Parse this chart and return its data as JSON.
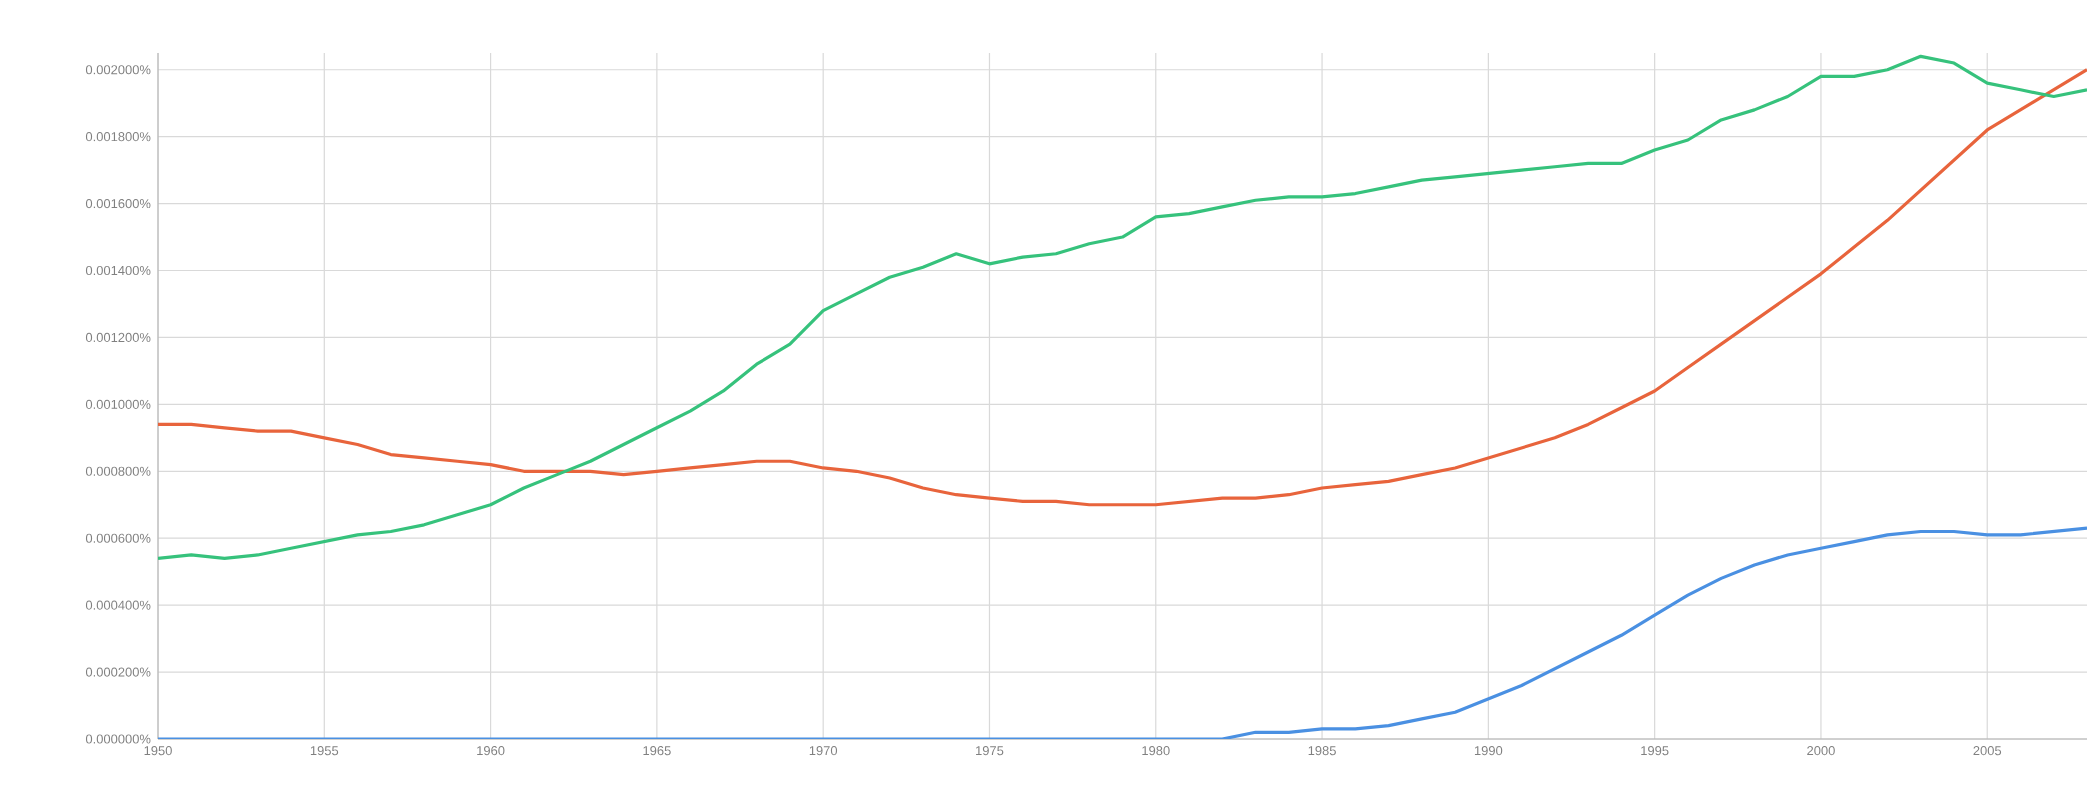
{
  "chart_data": {
    "type": "line",
    "x": [
      1950,
      1951,
      1952,
      1953,
      1954,
      1955,
      1956,
      1957,
      1958,
      1959,
      1960,
      1961,
      1962,
      1963,
      1964,
      1965,
      1966,
      1967,
      1968,
      1969,
      1970,
      1971,
      1972,
      1973,
      1974,
      1975,
      1976,
      1977,
      1978,
      1979,
      1980,
      1981,
      1982,
      1983,
      1984,
      1985,
      1986,
      1987,
      1988,
      1989,
      1990,
      1991,
      1992,
      1993,
      1994,
      1995,
      1996,
      1997,
      1998,
      1999,
      2000,
      2001,
      2002,
      2003,
      2004,
      2005,
      2006,
      2007,
      2008
    ],
    "series": [
      {
        "color": "#e8643c",
        "values": [
          0.00094,
          0.00094,
          0.00093,
          0.00092,
          0.00092,
          0.0009,
          0.00088,
          0.00085,
          0.00084,
          0.00083,
          0.00082,
          0.0008,
          0.0008,
          0.0008,
          0.00079,
          0.0008,
          0.00081,
          0.00082,
          0.00083,
          0.00083,
          0.00081,
          0.0008,
          0.00078,
          0.00075,
          0.00073,
          0.00072,
          0.00071,
          0.00071,
          0.0007,
          0.0007,
          0.0007,
          0.00071,
          0.00072,
          0.00072,
          0.00073,
          0.00075,
          0.00076,
          0.00077,
          0.00079,
          0.00081,
          0.00084,
          0.00087,
          0.0009,
          0.00094,
          0.00099,
          0.00104,
          0.00111,
          0.00118,
          0.00125,
          0.00132,
          0.00139,
          0.00147,
          0.00155,
          0.00164,
          0.00173,
          0.00182,
          0.00188,
          0.00194,
          0.002
        ]
      },
      {
        "color": "#36c27c",
        "values": [
          0.00054,
          0.00055,
          0.00054,
          0.00055,
          0.00057,
          0.00059,
          0.00061,
          0.00062,
          0.00064,
          0.00067,
          0.0007,
          0.00075,
          0.00079,
          0.00083,
          0.00088,
          0.00093,
          0.00098,
          0.00104,
          0.00112,
          0.00118,
          0.00128,
          0.00133,
          0.00138,
          0.00141,
          0.00145,
          0.00142,
          0.00144,
          0.00145,
          0.00148,
          0.0015,
          0.00156,
          0.00157,
          0.00159,
          0.00161,
          0.00162,
          0.00162,
          0.00163,
          0.00165,
          0.00167,
          0.00168,
          0.00169,
          0.0017,
          0.00171,
          0.00172,
          0.00172,
          0.00176,
          0.00179,
          0.00185,
          0.00188,
          0.00192,
          0.00198,
          0.00198,
          0.002,
          0.00204,
          0.00202,
          0.00196,
          0.00194,
          0.00192,
          0.00194
        ]
      },
      {
        "color": "#4a90e2",
        "values": [
          0,
          0,
          0,
          0,
          0,
          0,
          0,
          0,
          0,
          0,
          0,
          0,
          0,
          0,
          0,
          0,
          0,
          0,
          0,
          0,
          0,
          0,
          0,
          0,
          0,
          0,
          0,
          0,
          0,
          0,
          0,
          0,
          0,
          2e-05,
          2e-05,
          3e-05,
          3e-05,
          4e-05,
          6e-05,
          8e-05,
          0.00012,
          0.00016,
          0.00021,
          0.00026,
          0.00031,
          0.00037,
          0.00043,
          0.00048,
          0.00052,
          0.00055,
          0.00057,
          0.00059,
          0.00061,
          0.00062,
          0.00062,
          0.00061,
          0.00061,
          0.00062,
          0.00063
        ]
      }
    ],
    "xlim": [
      1950,
      2008
    ],
    "xticks": [
      1950,
      1955,
      1960,
      1965,
      1970,
      1975,
      1980,
      1985,
      1990,
      1995,
      2000,
      2005
    ],
    "ylim": [
      0,
      0.00205
    ],
    "yticks": [
      {
        "value": 0,
        "label": "0.000000%"
      },
      {
        "value": 0.0002,
        "label": "0.000200%"
      },
      {
        "value": 0.0004,
        "label": "0.000400%"
      },
      {
        "value": 0.0006,
        "label": "0.000600%"
      },
      {
        "value": 0.0008,
        "label": "0.000800%"
      },
      {
        "value": 0.001,
        "label": "0.001000%"
      },
      {
        "value": 0.0012,
        "label": "0.001200%"
      },
      {
        "value": 0.0014,
        "label": "0.001400%"
      },
      {
        "value": 0.0016,
        "label": "0.001600%"
      },
      {
        "value": 0.0018,
        "label": "0.001800%"
      },
      {
        "value": 0.002,
        "label": "0.002000%"
      }
    ],
    "grid": true,
    "marker": "none",
    "line_style": "solid"
  }
}
